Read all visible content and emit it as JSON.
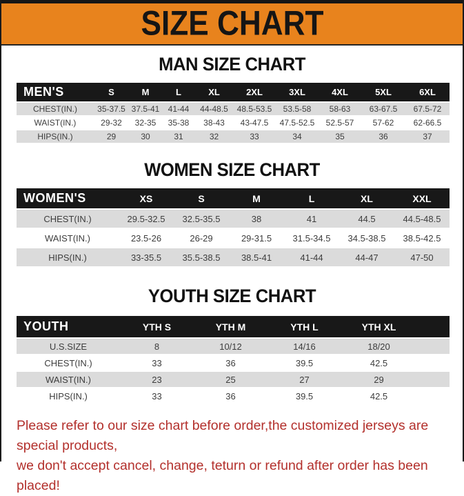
{
  "banner": {
    "title": "SIZE CHART"
  },
  "sections": [
    {
      "heading": "MAN SIZE CHART",
      "table": {
        "header": [
          "MEN'S",
          "S",
          "M",
          "L",
          "XL",
          "2XL",
          "3XL",
          "4XL",
          "5XL",
          "6XL"
        ],
        "rows": [
          [
            "CHEST(IN.)",
            "35-37.5",
            "37.5-41",
            "41-44",
            "44-48.5",
            "48.5-53.5",
            "53.5-58",
            "58-63",
            "63-67.5",
            "67.5-72"
          ],
          [
            "WAIST(IN.)",
            "29-32",
            "32-35",
            "35-38",
            "38-43",
            "43-47.5",
            "47.5-52.5",
            "52.5-57",
            "57-62",
            "62-66.5"
          ],
          [
            "HIPS(IN.)",
            "29",
            "30",
            "31",
            "32",
            "33",
            "34",
            "35",
            "36",
            "37"
          ]
        ]
      }
    },
    {
      "heading": "WOMEN SIZE CHART",
      "table": {
        "header": [
          "WOMEN'S",
          "XS",
          "S",
          "M",
          "L",
          "XL",
          "XXL"
        ],
        "rows": [
          [
            "CHEST(IN.)",
            "29.5-32.5",
            "32.5-35.5",
            "38",
            "41",
            "44.5",
            "44.5-48.5"
          ],
          [
            "WAIST(IN.)",
            "23.5-26",
            "26-29",
            "29-31.5",
            "31.5-34.5",
            "34.5-38.5",
            "38.5-42.5"
          ],
          [
            "HIPS(IN.)",
            "33-35.5",
            "35.5-38.5",
            "38.5-41",
            "41-44",
            "44-47",
            "47-50"
          ]
        ]
      }
    },
    {
      "heading": "YOUTH SIZE CHART",
      "table": {
        "header": [
          "YOUTH",
          "YTH S",
          "YTH M",
          "YTH L",
          "YTH XL"
        ],
        "rows": [
          [
            "U.S.SIZE",
            "8",
            "10/12",
            "14/16",
            "18/20"
          ],
          [
            "CHEST(IN.)",
            "33",
            "36",
            "39.5",
            "42.5"
          ],
          [
            "WAIST(IN.)",
            "23",
            "25",
            "27",
            "29"
          ],
          [
            "HIPS(IN.)",
            "33",
            "36",
            "39.5",
            "42.5"
          ]
        ]
      }
    }
  ],
  "footer": {
    "line1": "Please refer to our size chart before order,the customized jerseys are special products,",
    "line2": "we don't accept cancel, change, teturn or refund after order has been placed!"
  },
  "colors": {
    "banner_orange": "#E8831D",
    "strip_black": "#161616",
    "header_black": "#181818",
    "row_gray": "#DBDBDB",
    "footer_red": "#B3302C"
  }
}
